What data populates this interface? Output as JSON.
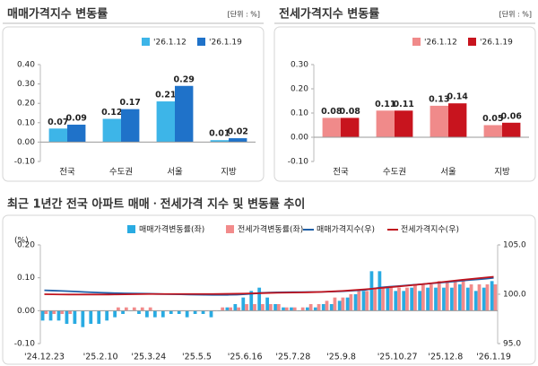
{
  "chart_data": [
    {
      "type": "bar",
      "title": "매매가격지수 변동률",
      "unit_label": "[단위 : %]",
      "categories": [
        "전국",
        "수도권",
        "서울",
        "지방"
      ],
      "series": [
        {
          "name": "'26.1.12",
          "color": "#3db5e8",
          "values": [
            0.07,
            0.12,
            0.21,
            0.01
          ]
        },
        {
          "name": "'26.1.19",
          "color": "#1f72c9",
          "values": [
            0.09,
            0.17,
            0.29,
            0.02
          ]
        }
      ],
      "ylim": [
        -0.1,
        0.4
      ],
      "yticks": [
        {
          "value": -0.1,
          "label": "-0.10"
        },
        {
          "value": 0,
          "label": "0.00"
        },
        {
          "value": 0.1,
          "label": "0.10"
        },
        {
          "value": 0.2,
          "label": "0.20"
        },
        {
          "value": 0.3,
          "label": "0.30"
        },
        {
          "value": 0.4,
          "label": "0.40"
        }
      ],
      "data_labels": true,
      "grid": false
    },
    {
      "type": "bar",
      "title": "전세가격지수 변동률",
      "unit_label": "[단위 : %]",
      "categories": [
        "전국",
        "수도권",
        "서울",
        "지방"
      ],
      "series": [
        {
          "name": "'26.1.12",
          "color": "#f08a8a",
          "values": [
            0.08,
            0.11,
            0.13,
            0.05
          ]
        },
        {
          "name": "'26.1.19",
          "color": "#c8141e",
          "values": [
            0.08,
            0.11,
            0.14,
            0.06
          ]
        }
      ],
      "ylim": [
        -0.1,
        0.3
      ],
      "yticks": [
        {
          "value": -0.1,
          "label": "-0.10"
        },
        {
          "value": 0,
          "label": "0.00"
        },
        {
          "value": 0.1,
          "label": "0.10"
        },
        {
          "value": 0.2,
          "label": "0.20"
        },
        {
          "value": 0.3,
          "label": "0.30"
        }
      ],
      "data_labels": true,
      "grid": false
    },
    {
      "type": "bar",
      "title": "최근 1년간 전국 아파트 매매ㆍ전세가격 지수 및 변동률 추이",
      "y_label": "(%)",
      "categories": [
        "'24.12.23",
        null,
        null,
        null,
        null,
        null,
        null,
        "'25.2.10",
        null,
        null,
        null,
        null,
        null,
        "'25.3.24",
        null,
        null,
        null,
        null,
        null,
        "'25.5.5",
        null,
        null,
        null,
        null,
        null,
        "'25.6.16",
        null,
        null,
        null,
        null,
        null,
        "'25.7.28",
        null,
        null,
        null,
        null,
        null,
        "'25.9.8",
        null,
        null,
        null,
        null,
        null,
        null,
        "'25.10.27",
        null,
        null,
        null,
        null,
        null,
        "'25.12.8",
        null,
        null,
        null,
        null,
        null,
        "'26.1.19"
      ],
      "series": [
        {
          "name": "매매가격변동률(좌)",
          "color": "#29abe2",
          "values": [
            -0.03,
            -0.03,
            -0.03,
            -0.04,
            -0.04,
            -0.05,
            -0.04,
            -0.04,
            -0.03,
            -0.02,
            -0.01,
            0.0,
            -0.01,
            -0.02,
            -0.02,
            -0.02,
            -0.01,
            -0.01,
            -0.02,
            -0.01,
            -0.01,
            -0.02,
            0.0,
            0.01,
            0.02,
            0.04,
            0.06,
            0.07,
            0.04,
            0.02,
            0.01,
            0.01,
            0.0,
            0.01,
            0.01,
            0.02,
            0.02,
            0.03,
            0.04,
            0.05,
            0.06,
            0.12,
            0.12,
            0.07,
            0.06,
            0.06,
            0.07,
            0.06,
            0.07,
            0.07,
            0.07,
            0.07,
            0.08,
            0.07,
            0.06,
            0.07,
            0.09
          ]
        },
        {
          "name": "전세가격변동률(좌)",
          "color": "#f28b8b",
          "values": [
            -0.01,
            -0.01,
            -0.01,
            -0.01,
            0.0,
            0.0,
            0.0,
            0.0,
            0.0,
            0.01,
            0.01,
            0.01,
            0.01,
            0.01,
            0.0,
            0.0,
            0.0,
            0.0,
            0.0,
            0.0,
            0.0,
            0.0,
            0.01,
            0.01,
            0.01,
            0.02,
            0.02,
            0.02,
            0.02,
            0.02,
            0.01,
            0.01,
            0.01,
            0.02,
            0.02,
            0.03,
            0.04,
            0.04,
            0.05,
            0.06,
            0.06,
            0.07,
            0.07,
            0.07,
            0.07,
            0.07,
            0.08,
            0.08,
            0.08,
            0.09,
            0.09,
            0.09,
            0.09,
            0.08,
            0.08,
            0.08,
            0.08
          ]
        },
        {
          "name": "매매가격지수(우)",
          "color": "#1f5fa8",
          "type": "line",
          "axis": "y2",
          "values": [
            100.4,
            100.37,
            100.34,
            100.31,
            100.27,
            100.23,
            100.19,
            100.16,
            100.13,
            100.11,
            100.09,
            100.08,
            100.07,
            100.05,
            100.03,
            100.01,
            100.0,
            99.99,
            99.97,
            99.96,
            99.95,
            99.93,
            99.93,
            99.94,
            99.96,
            100.0,
            100.06,
            100.13,
            100.17,
            100.19,
            100.2,
            100.21,
            100.21,
            100.22,
            100.23,
            100.25,
            100.27,
            100.3,
            100.34,
            100.39,
            100.45,
            100.57,
            100.69,
            100.76,
            100.82,
            100.88,
            100.95,
            101.01,
            101.08,
            101.15,
            101.22,
            101.29,
            101.37,
            101.44,
            101.5,
            101.57,
            101.66
          ]
        },
        {
          "name": "전세가격지수(우)",
          "color": "#c0141e",
          "type": "line",
          "axis": "y2",
          "values": [
            100.0,
            99.99,
            99.98,
            99.97,
            99.97,
            99.97,
            99.97,
            99.97,
            99.97,
            99.98,
            99.99,
            100.0,
            100.01,
            100.02,
            100.02,
            100.02,
            100.02,
            100.02,
            100.02,
            100.02,
            100.02,
            100.02,
            100.03,
            100.04,
            100.05,
            100.07,
            100.09,
            100.11,
            100.13,
            100.15,
            100.16,
            100.17,
            100.18,
            100.2,
            100.22,
            100.25,
            100.29,
            100.33,
            100.38,
            100.44,
            100.5,
            100.57,
            100.64,
            100.71,
            100.78,
            100.85,
            100.93,
            101.01,
            101.09,
            101.18,
            101.27,
            101.36,
            101.45,
            101.53,
            101.61,
            101.69,
            101.77
          ]
        }
      ],
      "ylim": [
        -0.1,
        0.2
      ],
      "yticks": [
        {
          "value": -0.1,
          "label": "-0.10"
        },
        {
          "value": 0,
          "label": "0.00"
        },
        {
          "value": 0.1,
          "label": "0.10"
        },
        {
          "value": 0.2,
          "label": "0.20"
        }
      ],
      "y2lim": [
        95,
        105
      ],
      "y2ticks": [
        {
          "value": 95,
          "label": "95.0"
        },
        {
          "value": 100,
          "label": "100.0"
        },
        {
          "value": 105,
          "label": "105.0"
        }
      ],
      "data_labels": false,
      "grid": false
    }
  ]
}
